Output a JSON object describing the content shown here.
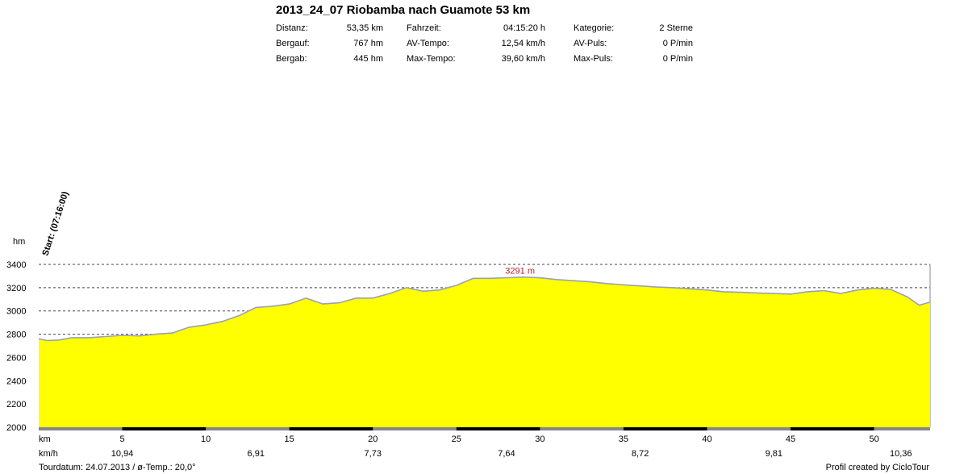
{
  "header": {
    "title": "2013_24_07 Riobamba nach Guamote 53 km",
    "rows": [
      {
        "l1": "Distanz:",
        "v1": "53,35 km",
        "l2": "Fahrzeit:",
        "v2": "04:15:20 h",
        "l3": "Kategorie:",
        "v3": "2 Sterne"
      },
      {
        "l1": "Bergauf:",
        "v1": "767 hm",
        "l2": "AV-Tempo:",
        "v2": "12,54 km/h",
        "l3": "AV-Puls:",
        "v3": "0 P/min"
      },
      {
        "l1": "Bergab:",
        "v1": "445 hm",
        "l2": "Max-Tempo:",
        "v2": "39,60 km/h",
        "l3": "Max-Puls:",
        "v3": "0 P/min"
      }
    ]
  },
  "chart_data": {
    "type": "area",
    "ylabel": "hm",
    "xlabel": "km",
    "speed_label": "km/h",
    "start_label": "Start: (07:16:00)",
    "max_label": "3291 m",
    "xlim": [
      0,
      53.35
    ],
    "ylim": [
      2000,
      3400
    ],
    "yticks": [
      2000,
      2200,
      2400,
      2600,
      2800,
      3000,
      3200,
      3400
    ],
    "xticks": [
      5,
      10,
      15,
      20,
      25,
      30,
      35,
      40,
      45,
      50
    ],
    "fill_color": "#ffff00",
    "line_color": "#9aa0b8",
    "grid": "dashed horizontal",
    "speeds": [
      {
        "km": 5,
        "value": "10,94"
      },
      {
        "km": 13,
        "value": "6,91"
      },
      {
        "km": 20,
        "value": "7,73"
      },
      {
        "km": 28,
        "value": "7,64"
      },
      {
        "km": 36,
        "value": "8,72"
      },
      {
        "km": 44,
        "value": "9,81"
      },
      {
        "km": 51.6,
        "value": "10,36"
      }
    ],
    "profile": [
      [
        0,
        2760
      ],
      [
        0.5,
        2745
      ],
      [
        1.2,
        2750
      ],
      [
        2,
        2770
      ],
      [
        3,
        2770
      ],
      [
        4,
        2780
      ],
      [
        5,
        2790
      ],
      [
        6,
        2785
      ],
      [
        7,
        2800
      ],
      [
        8,
        2810
      ],
      [
        9,
        2860
      ],
      [
        10,
        2880
      ],
      [
        11,
        2910
      ],
      [
        12,
        2960
      ],
      [
        13,
        3030
      ],
      [
        14,
        3040
      ],
      [
        15,
        3060
      ],
      [
        16,
        3110
      ],
      [
        17,
        3060
      ],
      [
        18,
        3070
      ],
      [
        19,
        3110
      ],
      [
        20,
        3110
      ],
      [
        21,
        3150
      ],
      [
        22,
        3200
      ],
      [
        23,
        3170
      ],
      [
        24,
        3180
      ],
      [
        25,
        3220
      ],
      [
        26,
        3280
      ],
      [
        27,
        3280
      ],
      [
        28,
        3285
      ],
      [
        29,
        3291
      ],
      [
        30,
        3285
      ],
      [
        31,
        3270
      ],
      [
        32,
        3260
      ],
      [
        33,
        3250
      ],
      [
        34,
        3235
      ],
      [
        35,
        3225
      ],
      [
        36,
        3215
      ],
      [
        37,
        3205
      ],
      [
        38,
        3200
      ],
      [
        39,
        3190
      ],
      [
        40,
        3180
      ],
      [
        41,
        3165
      ],
      [
        42,
        3160
      ],
      [
        43,
        3155
      ],
      [
        44,
        3150
      ],
      [
        45,
        3145
      ],
      [
        46,
        3165
      ],
      [
        47,
        3175
      ],
      [
        48,
        3150
      ],
      [
        49,
        3180
      ],
      [
        50,
        3195
      ],
      [
        51,
        3185
      ],
      [
        52,
        3120
      ],
      [
        52.7,
        3050
      ],
      [
        53.35,
        3075
      ]
    ]
  },
  "footer": {
    "left": "Tourdatum: 24.07.2013  /  ø-Temp.: 20,0°",
    "right": "Profil created by CicloTour"
  }
}
